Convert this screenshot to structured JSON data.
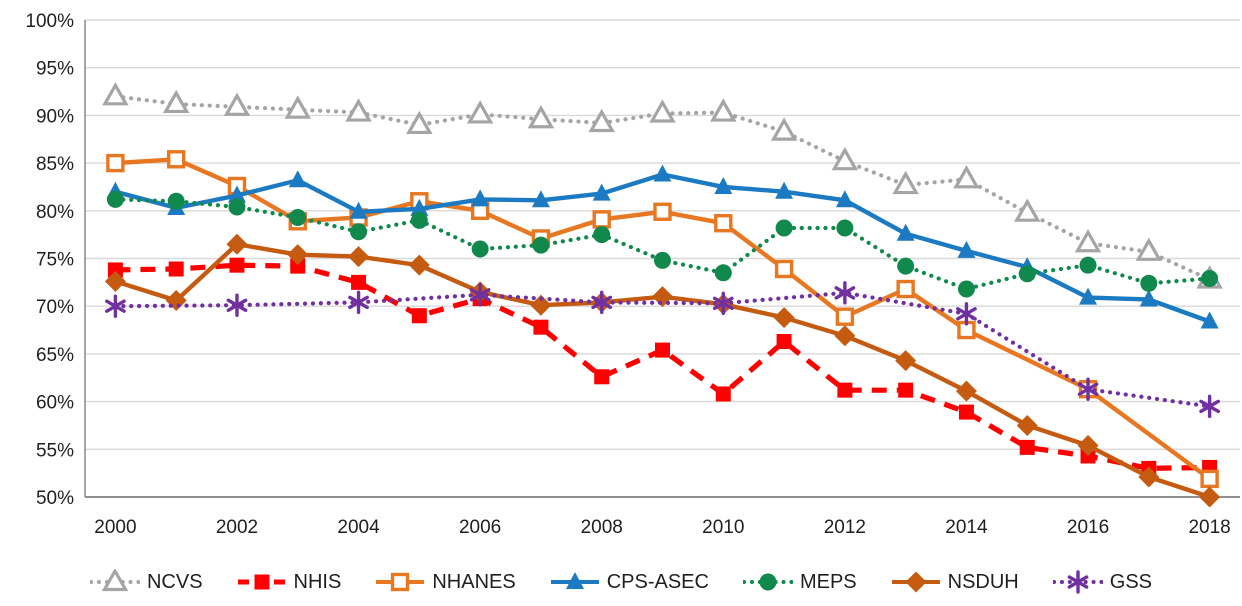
{
  "chart_data": {
    "type": "line",
    "title": "",
    "xlabel": "",
    "ylabel": "",
    "grid": "horizontal",
    "legend_position": "bottom",
    "x": [
      2000,
      2001,
      2002,
      2003,
      2004,
      2005,
      2006,
      2007,
      2008,
      2009,
      2010,
      2011,
      2012,
      2013,
      2014,
      2015,
      2016,
      2017,
      2018
    ],
    "x_axis": {
      "tick_labels": [
        "2000",
        "2002",
        "2004",
        "2006",
        "2008",
        "2010",
        "2012",
        "2014",
        "2016",
        "2018"
      ],
      "tick_year_indices": [
        0,
        2,
        4,
        6,
        8,
        10,
        12,
        14,
        16,
        18
      ]
    },
    "y_axis": {
      "min": 50,
      "max": 100,
      "tick_step": 5,
      "tick_labels": [
        "100%",
        "95%",
        "90%",
        "85%",
        "80%",
        "75%",
        "70%",
        "65%",
        "60%",
        "55%",
        "50%"
      ]
    },
    "colors": {
      "gridline": "#d9d9d9",
      "axis_line": "#808080",
      "text": "#1f1f1f"
    },
    "series": [
      {
        "name": "NCVS",
        "color": "#a5a5a5",
        "line": "dot",
        "marker": "triangle-open",
        "values": [
          92.0,
          91.2,
          90.9,
          90.6,
          90.3,
          89.0,
          90.1,
          89.6,
          89.2,
          90.2,
          90.3,
          88.3,
          85.2,
          82.7,
          83.3,
          79.8,
          76.6,
          75.7,
          72.8
        ]
      },
      {
        "name": "NHIS",
        "color": "#ff0000",
        "line": "dash",
        "marker": "square",
        "values": [
          73.8,
          73.9,
          74.3,
          74.2,
          72.5,
          69.0,
          70.8,
          67.8,
          62.6,
          65.4,
          60.8,
          66.3,
          61.2,
          61.2,
          58.9,
          55.2,
          54.3,
          53.0,
          53.1
        ]
      },
      {
        "name": "NHANES",
        "color": "#e87722",
        "line": "solid",
        "marker": "square-open",
        "values": [
          85.0,
          85.4,
          82.6,
          78.9,
          79.3,
          81.0,
          80.0,
          77.1,
          79.1,
          79.9,
          78.7,
          73.9,
          68.9,
          71.8,
          67.5,
          null,
          61.3,
          null,
          51.9
        ]
      },
      {
        "name": "CPS-ASEC",
        "color": "#1b7ac2",
        "line": "solid",
        "marker": "triangle",
        "values": [
          82.0,
          80.3,
          81.6,
          83.2,
          79.9,
          80.2,
          81.2,
          81.1,
          81.8,
          83.8,
          82.5,
          82.0,
          81.1,
          77.6,
          75.8,
          74.1,
          70.9,
          70.7,
          68.4
        ]
      },
      {
        "name": "MEPS",
        "color": "#12894c",
        "line": "dot",
        "marker": "circle",
        "values": [
          81.2,
          81.0,
          80.4,
          79.3,
          77.8,
          79.0,
          76.0,
          76.4,
          77.5,
          74.8,
          73.5,
          78.2,
          78.2,
          74.2,
          71.8,
          73.4,
          74.3,
          72.4,
          72.9
        ]
      },
      {
        "name": "NSDUH",
        "color": "#c55a11",
        "line": "solid",
        "marker": "diamond",
        "values": [
          72.6,
          70.6,
          76.5,
          75.4,
          75.2,
          74.3,
          71.5,
          70.1,
          70.4,
          71.0,
          70.2,
          68.8,
          66.9,
          64.3,
          61.1,
          57.5,
          55.4,
          52.1,
          50.0
        ]
      },
      {
        "name": "GSS",
        "color": "#7030a0",
        "line": "dot",
        "marker": "asterisk",
        "values": [
          70.0,
          null,
          70.1,
          null,
          70.4,
          null,
          71.2,
          null,
          70.4,
          null,
          70.3,
          null,
          71.4,
          null,
          69.2,
          null,
          61.3,
          null,
          59.5
        ]
      }
    ]
  }
}
